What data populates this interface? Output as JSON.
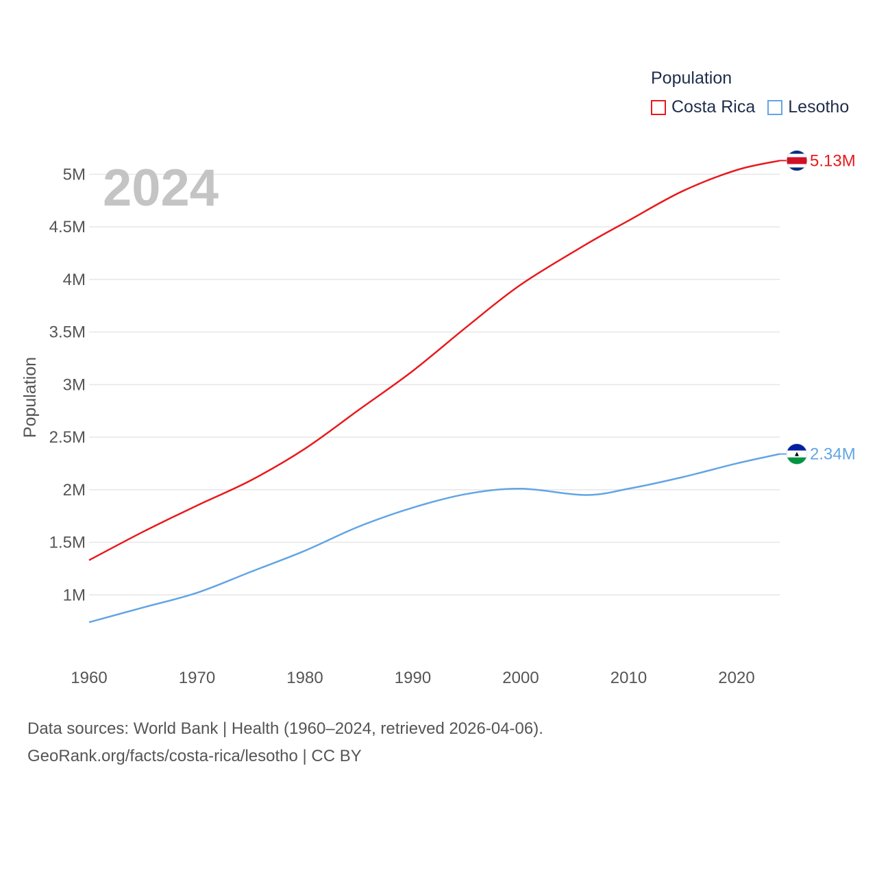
{
  "chart_data": {
    "type": "line",
    "title": "Population",
    "year_label": "2024",
    "ylabel": "Population",
    "xlabel": "",
    "xlim": [
      1960,
      2024
    ],
    "ylim": [
      500000,
      5400000
    ],
    "x_ticks": [
      {
        "value": 1960,
        "label": "1960"
      },
      {
        "value": 1970,
        "label": "1970"
      },
      {
        "value": 1980,
        "label": "1980"
      },
      {
        "value": 1990,
        "label": "1990"
      },
      {
        "value": 2000,
        "label": "2000"
      },
      {
        "value": 2010,
        "label": "2010"
      },
      {
        "value": 2020,
        "label": "2020"
      }
    ],
    "y_ticks": [
      {
        "value": 1000000,
        "label": "1M"
      },
      {
        "value": 1500000,
        "label": "1.5M"
      },
      {
        "value": 2000000,
        "label": "2M"
      },
      {
        "value": 2500000,
        "label": "2.5M"
      },
      {
        "value": 3000000,
        "label": "3M"
      },
      {
        "value": 3500000,
        "label": "3.5M"
      },
      {
        "value": 4000000,
        "label": "4M"
      },
      {
        "value": 4500000,
        "label": "4.5M"
      },
      {
        "value": 5000000,
        "label": "5M"
      }
    ],
    "x": [
      1960,
      1965,
      1970,
      1975,
      1980,
      1985,
      1990,
      1995,
      2000,
      2006,
      2010,
      2015,
      2020,
      2024
    ],
    "series": [
      {
        "name": "Costa Rica",
        "color": "#e8191c",
        "end_label": "5.13M",
        "flag": "costa-rica-flag-icon",
        "values": [
          1330000,
          1600000,
          1850000,
          2090000,
          2390000,
          2760000,
          3130000,
          3550000,
          3950000,
          4330000,
          4560000,
          4840000,
          5040000,
          5130000
        ]
      },
      {
        "name": "Lesotho",
        "color": "#62a5e4",
        "end_label": "2.34M",
        "flag": "lesotho-flag-icon",
        "values": [
          740000,
          880000,
          1020000,
          1220000,
          1420000,
          1650000,
          1830000,
          1960000,
          2010000,
          1950000,
          2010000,
          2120000,
          2250000,
          2340000
        ]
      }
    ]
  },
  "legend": {
    "title": "Population",
    "items": [
      {
        "label": "Costa Rica",
        "color": "#e8191c"
      },
      {
        "label": "Lesotho",
        "color": "#62a5e4"
      }
    ]
  },
  "footer": {
    "line1": "Data sources: World Bank | Health (1960–2024, retrieved 2026-04-06).",
    "line2": "GeoRank.org/facts/costa-rica/lesotho | CC BY"
  }
}
